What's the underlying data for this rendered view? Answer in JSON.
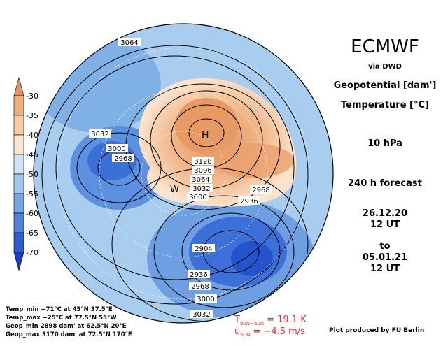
{
  "header": {
    "title": "ECMWF",
    "source": "via DWD",
    "field1": "Geopotential [dam']",
    "field2": "Temperature [°C]",
    "level": "10 hPa",
    "forecast": "240 h forecast",
    "start_date": "26.12.20",
    "start_time": "12 UT",
    "to": "to",
    "end_date": "05.01.21",
    "end_time": "12 UT"
  },
  "colorbar": {
    "ticks": [
      -30,
      -35,
      -40,
      -45,
      -50,
      -55,
      -60,
      -65,
      -70
    ]
  },
  "map": {
    "highs": [
      "H"
    ],
    "warm_label": "W",
    "contour_labels": [
      "3064",
      "3032",
      "3000",
      "2968",
      "3128",
      "3096",
      "3064",
      "3032",
      "3000",
      "2968",
      "2936",
      "2904",
      "2936",
      "2968",
      "3000",
      "3032"
    ]
  },
  "stats": [
    "Temp_min −71°C at 45°N 37.5°E",
    "Temp_max −25°C at 77.5°N 55°W",
    "Geop_min 2898 dam' at 62.5°N 20°E",
    "Geop_max 3170 dam' at 72.5°N 170°E"
  ],
  "diagnostics": [
    {
      "symbol": "T",
      "subscript": "90N−60N",
      "text": "= 19.1 K"
    },
    {
      "symbol": "u",
      "subscript": "60N",
      "text": "= −4.5 m/s"
    }
  ],
  "credit": "Plot produced by FU Berlin"
}
